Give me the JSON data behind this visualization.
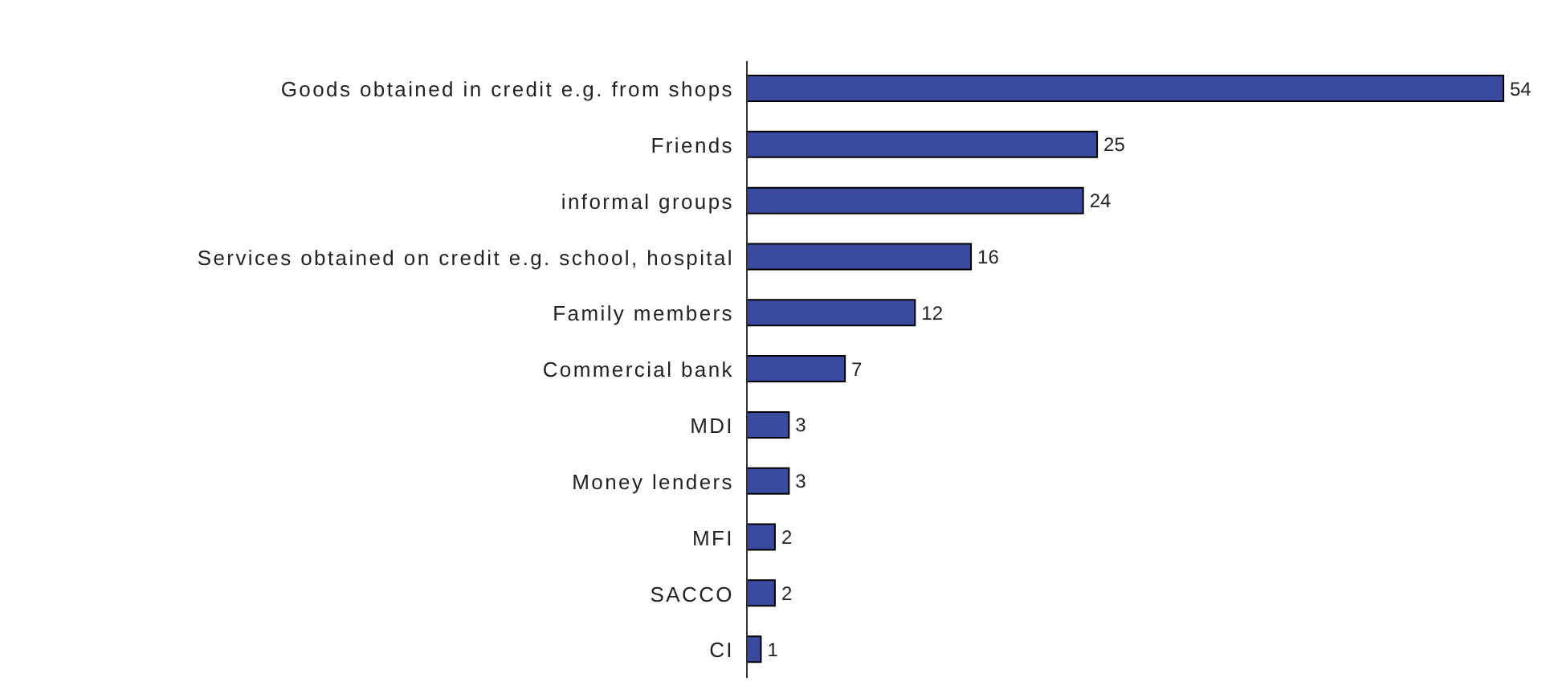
{
  "chart_data": {
    "type": "bar",
    "orientation": "horizontal",
    "categories": [
      "Goods obtained in credit e.g. from shops",
      "Friends",
      "informal groups",
      "Services obtained on credit e.g. school, hospital",
      "Family members",
      "Commercial bank",
      "MDI",
      "Money lenders",
      "MFI",
      "SACCO",
      "CI"
    ],
    "values": [
      54,
      25,
      24,
      16,
      12,
      7,
      3,
      3,
      2,
      2,
      1
    ],
    "color": "#3a4a9e",
    "data_labels": true
  }
}
